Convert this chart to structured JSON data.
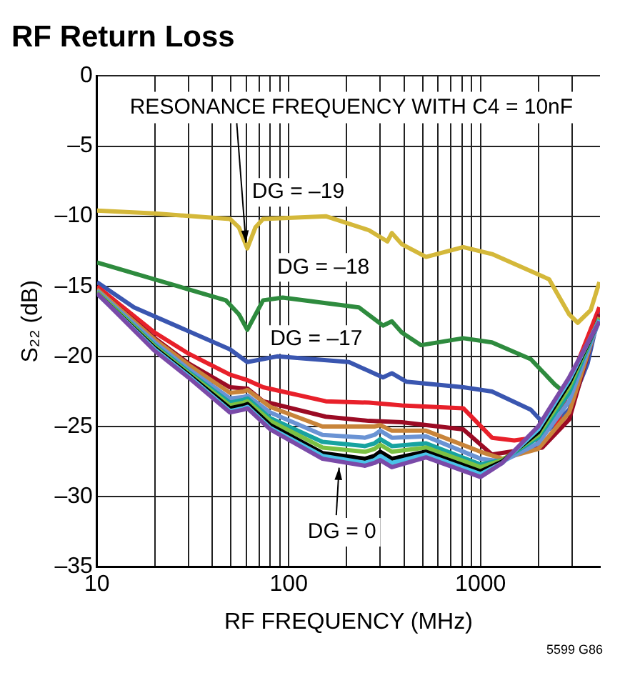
{
  "chart_data": {
    "type": "line",
    "title": "RF Return Loss",
    "xlabel": "RF FREQUENCY (MHz)",
    "ylabel": "S₂₂ (dB)",
    "log": "x",
    "grid": true,
    "xlim": [
      10,
      4200
    ],
    "ylim": [
      -35,
      0
    ],
    "xticks": [
      10,
      {
        "value": 20,
        "label": null
      },
      {
        "value": 30,
        "label": null
      },
      {
        "value": 40,
        "label": null
      },
      {
        "value": 50,
        "label": null
      },
      {
        "value": 60,
        "label": null
      },
      {
        "value": 70,
        "label": null
      },
      {
        "value": 80,
        "label": null
      },
      {
        "value": 90,
        "label": null
      },
      100,
      {
        "value": 200,
        "label": null
      },
      {
        "value": 300,
        "label": null
      },
      {
        "value": 400,
        "label": null
      },
      {
        "value": 500,
        "label": null
      },
      {
        "value": 600,
        "label": null
      },
      {
        "value": 700,
        "label": null
      },
      {
        "value": 800,
        "label": null
      },
      {
        "value": 900,
        "label": null
      },
      1000,
      {
        "value": 2000,
        "label": null
      },
      {
        "value": 3000,
        "label": null
      }
    ],
    "yticks": [
      0,
      {
        "value": -5,
        "label": "–5"
      },
      {
        "value": -10,
        "label": "–10"
      },
      {
        "value": -15,
        "label": "–15"
      },
      {
        "value": -20,
        "label": "–20"
      },
      {
        "value": -25,
        "label": "–25"
      },
      {
        "value": -30,
        "label": "–30"
      },
      {
        "value": -35,
        "label": "–35"
      }
    ],
    "series": [
      {
        "name": "DG = 0",
        "color": "#7a4aa8",
        "x": [
          10,
          20,
          30,
          49.4,
          58,
          61,
          80,
          150,
          250,
          280,
          300,
          345,
          520,
          1000,
          1300,
          2000,
          2900,
          4170
        ],
        "values": [
          -15.5,
          -19.6,
          -21.5,
          -24,
          -23.8,
          -23.7,
          -25.2,
          -27.3,
          -27.8,
          -27.6,
          -27.4,
          -27.9,
          -27.2,
          -28.6,
          -27.6,
          -25.0,
          -21.5,
          -17.5
        ]
      },
      {
        "color": "#49c3e8",
        "x": [
          10,
          20,
          30,
          49.4,
          58,
          61,
          80,
          150,
          250,
          280,
          300,
          345,
          520,
          1000,
          1300,
          2000,
          2900,
          4170
        ],
        "values": [
          -15.5,
          -19.5,
          -21.4,
          -23.9,
          -23.7,
          -23.6,
          -25.1,
          -27.1,
          -27.6,
          -27.4,
          -27.1,
          -27.6,
          -27.0,
          -28.4,
          -27.6,
          -25.2,
          -21.7,
          -17.4
        ]
      },
      {
        "color": "#000000",
        "x": [
          10,
          20,
          30,
          49.4,
          58,
          61,
          80,
          150,
          250,
          280,
          300,
          345,
          520,
          1000,
          1300,
          2000,
          2900,
          4170
        ],
        "values": [
          -15.5,
          -19.4,
          -21.3,
          -23.7,
          -23.5,
          -23.4,
          -24.9,
          -26.9,
          -27.3,
          -27.1,
          -26.8,
          -27.3,
          -26.8,
          -28.2,
          -27.5,
          -25.4,
          -21.9,
          -17.4
        ]
      },
      {
        "color": "#7bc043",
        "x": [
          10,
          20,
          30,
          49.4,
          58,
          61,
          80,
          150,
          250,
          280,
          300,
          345,
          520,
          1000,
          1300,
          2000,
          2900,
          4170
        ],
        "values": [
          -15.4,
          -19.3,
          -21.2,
          -23.5,
          -23.3,
          -23.2,
          -24.6,
          -26.5,
          -26.8,
          -26.6,
          -26.3,
          -26.8,
          -26.5,
          -27.9,
          -27.4,
          -25.6,
          -22.2,
          -17.3
        ]
      },
      {
        "color": "#17a3a0",
        "x": [
          10,
          20,
          30,
          49.4,
          58,
          61,
          80,
          150,
          250,
          280,
          300,
          345,
          520,
          1000,
          1300,
          2000,
          2900,
          4170
        ],
        "values": [
          -15.4,
          -19.2,
          -21.1,
          -23.3,
          -23.1,
          -23.0,
          -24.4,
          -26.1,
          -26.4,
          -26.2,
          -25.9,
          -26.4,
          -26.2,
          -27.7,
          -27.4,
          -25.8,
          -22.6,
          -17.3
        ]
      },
      {
        "color": "#6a93d4",
        "x": [
          10,
          20,
          30,
          49.4,
          58,
          61,
          80,
          150,
          250,
          280,
          300,
          345,
          520,
          1000,
          1300,
          2000,
          2900,
          4170
        ],
        "values": [
          -15.3,
          -19,
          -20.9,
          -23,
          -22.9,
          -22.8,
          -24.0,
          -25.6,
          -25.8,
          -25.6,
          -25.3,
          -25.8,
          -25.7,
          -27.3,
          -27.5,
          -26.2,
          -23.2,
          -17.4
        ]
      },
      {
        "color": "#c8843a",
        "x": [
          10,
          20,
          30,
          49.4,
          58,
          61,
          80,
          150,
          250,
          280,
          300,
          345,
          520,
          1000,
          1300,
          2000,
          2900,
          4170
        ],
        "values": [
          -15.2,
          -18.8,
          -20.6,
          -22.6,
          -22.5,
          -22.4,
          -23.6,
          -25,
          -25,
          -25,
          -24.9,
          -25.3,
          -25.3,
          -26.8,
          -27.3,
          -26.6,
          -24.0,
          -17.2
        ]
      },
      {
        "color": "#9b0b24",
        "x": [
          10,
          20,
          30,
          49.4,
          61,
          73.5,
          156,
          262,
          389,
          813,
          1148,
          1600,
          2100,
          2900,
          4170
        ],
        "values": [
          -15.2,
          -18.7,
          -20.5,
          -22.2,
          -22.3,
          -23.2,
          -24.3,
          -24.6,
          -24.7,
          -25.2,
          -27,
          -26.7,
          -26.5,
          -24.5,
          -17
        ]
      },
      {
        "color": "#e8202a",
        "x": [
          10,
          20,
          30,
          49.4,
          61,
          73.5,
          156,
          262,
          389,
          813,
          1148,
          1500,
          1900,
          2100,
          2450,
          3200,
          4170
        ],
        "values": [
          -15,
          -18.3,
          -19.8,
          -21.3,
          -21.7,
          -22.2,
          -23.2,
          -23.3,
          -23.5,
          -23.7,
          -25.8,
          -26,
          -25.8,
          -26.3,
          -25.2,
          -20.5,
          -16.5
        ]
      },
      {
        "name": "DG = –17",
        "color": "#3a56b0",
        "x": [
          10,
          15.6,
          49.4,
          60.8,
          87,
          206,
          310,
          345,
          410,
          813,
          1148,
          1830,
          2280,
          2900,
          3620,
          4170
        ],
        "values": [
          -14.7,
          -16.5,
          -19.5,
          -20.4,
          -20,
          -20.4,
          -21.5,
          -21.2,
          -21.8,
          -22.2,
          -22.5,
          -23.8,
          -25.2,
          -23.8,
          -20.5,
          -16.8
        ]
      },
      {
        "name": "DG = –18",
        "color": "#2e8b3e",
        "x": [
          10,
          47,
          55,
          60.8,
          73.5,
          93,
          232,
          310,
          345,
          389,
          490,
          813,
          1148,
          1830,
          2440,
          2700,
          3220,
          3830,
          4170
        ],
        "values": [
          -13.3,
          -16,
          -17,
          -18.1,
          -16,
          -15.8,
          -16.5,
          -17.8,
          -17.5,
          -18.3,
          -19.2,
          -18.7,
          -19,
          -20.2,
          -22,
          -22.5,
          -21.8,
          -18.5,
          -16.5
        ]
      },
      {
        "name": "DG = –19",
        "color": "#d4b83a",
        "x": [
          10,
          20,
          49.4,
          55,
          60.8,
          67,
          73.5,
          156,
          262,
          327,
          345,
          389,
          520,
          813,
          1148,
          2280,
          2900,
          3215,
          3755,
          4170
        ],
        "values": [
          -9.6,
          -9.8,
          -10.2,
          -10.8,
          -12.3,
          -10.8,
          -10.2,
          -10,
          -11,
          -11.8,
          -11.2,
          -12,
          -12.9,
          -12.2,
          -12.7,
          -14.5,
          -17,
          -17.6,
          -16.7,
          -14.7
        ]
      }
    ],
    "annotations": [
      {
        "text": "RESONANCE FREQUENCY WITH C4 = 10nF",
        "x": 60.8,
        "y": -12.3
      },
      "5599 G86"
    ]
  }
}
